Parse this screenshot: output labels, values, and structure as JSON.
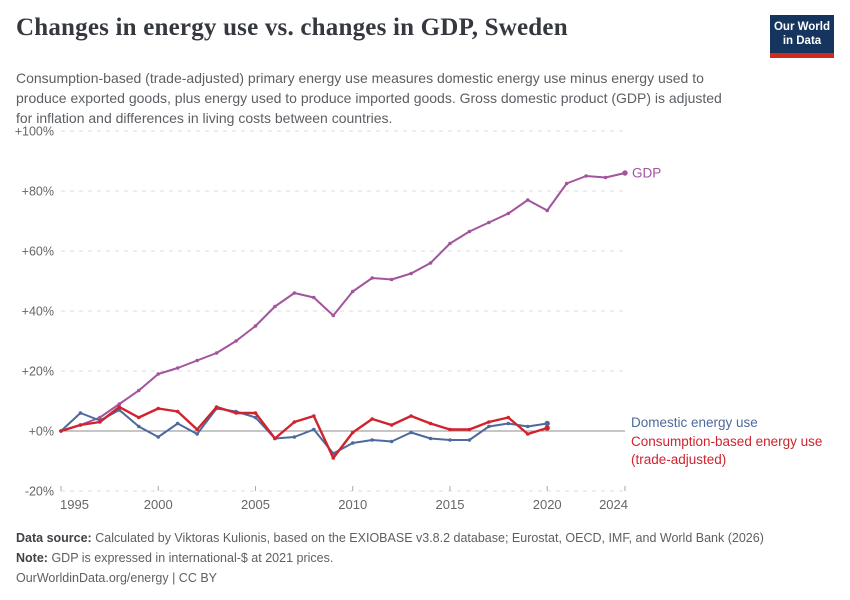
{
  "header": {
    "title": "Changes in energy use vs. changes in GDP, Sweden",
    "subtitle": "Consumption-based (trade-adjusted) primary energy use measures domestic energy use minus energy used to produce exported goods, plus energy used to produce imported goods. Gross domestic product (GDP) is adjusted for inflation and differences in living costs between countries.",
    "logo": {
      "line1": "Our World",
      "line2": "in Data",
      "bg_color": "#15355e",
      "stripe_color": "#d02a20"
    }
  },
  "chart_data": {
    "type": "line",
    "title": "Changes in energy use vs. changes in GDP, Sweden",
    "xlabel": "",
    "ylabel": "",
    "xlim": [
      1995,
      2024
    ],
    "ylim": [
      -20,
      100
    ],
    "grid": "horizontal-dashed",
    "legend_position": "right-of-line-ends",
    "x": [
      1995,
      1996,
      1997,
      1998,
      1999,
      2000,
      2001,
      2002,
      2003,
      2004,
      2005,
      2006,
      2007,
      2008,
      2009,
      2010,
      2011,
      2012,
      2013,
      2014,
      2015,
      2016,
      2017,
      2018,
      2019,
      2020,
      2021,
      2022,
      2023,
      2024
    ],
    "yticks": [
      {
        "value": -20,
        "label": "-20%"
      },
      {
        "value": 0,
        "label": "+0%"
      },
      {
        "value": 20,
        "label": "+20%"
      },
      {
        "value": 40,
        "label": "+40%"
      },
      {
        "value": 60,
        "label": "+60%"
      },
      {
        "value": 80,
        "label": "+80%"
      },
      {
        "value": 100,
        "label": "+100%"
      }
    ],
    "xticks": [
      {
        "value": 1995,
        "label": "1995"
      },
      {
        "value": 2000,
        "label": "2000"
      },
      {
        "value": 2005,
        "label": "2005"
      },
      {
        "value": 2010,
        "label": "2010"
      },
      {
        "value": 2015,
        "label": "2015"
      },
      {
        "value": 2020,
        "label": "2020"
      },
      {
        "value": 2024,
        "label": "2024"
      }
    ],
    "series": [
      {
        "name": "GDP",
        "label_lines": [
          "GDP"
        ],
        "color": "#a2559c",
        "values": [
          0,
          2,
          4.5,
          9,
          13.5,
          19,
          21,
          23.5,
          26,
          30,
          35,
          41.5,
          46,
          44.5,
          38.5,
          46.5,
          51,
          50.5,
          52.5,
          56,
          62.5,
          66.5,
          69.5,
          72.5,
          77,
          73.5,
          82.5,
          85,
          84.5,
          86
        ]
      },
      {
        "name": "Domestic energy use",
        "label_lines": [
          "Domestic energy use"
        ],
        "color": "#4c6a9c",
        "values": [
          0,
          6,
          3.5,
          7,
          1.5,
          -2,
          2.5,
          -1,
          7.5,
          6.5,
          4.5,
          -2.5,
          -2,
          0.5,
          -7.5,
          -4,
          -3,
          -3.5,
          -0.5,
          -2.5,
          -3,
          -3,
          1.5,
          2.5,
          1.5,
          2.5
        ]
      },
      {
        "name": "Consumption-based energy use (trade-adjusted)",
        "label_lines": [
          "Consumption-based energy use",
          "(trade-adjusted)"
        ],
        "color": "#d0232e",
        "values": [
          0,
          2,
          3,
          8,
          4.5,
          7.5,
          6.5,
          0.5,
          8,
          6,
          6,
          -2.5,
          3,
          5,
          -9,
          -0.5,
          4,
          2,
          5,
          2.5,
          0.5,
          0.5,
          3,
          4.5,
          -1,
          1
        ]
      }
    ]
  },
  "footer": {
    "source_label": "Data source:",
    "source_text": "Calculated by Viktoras Kulionis, based on the EXIOBASE v3.8.2 database; Eurostat, OECD, IMF, and World Bank (2026)",
    "note_label": "Note:",
    "note_text": "GDP is expressed in international-$ at 2021 prices.",
    "url_line": "OurWorldinData.org/energy | CC BY"
  }
}
